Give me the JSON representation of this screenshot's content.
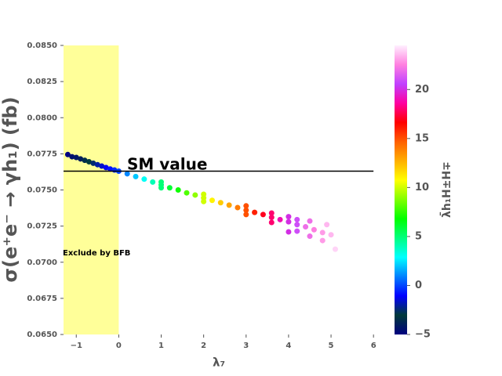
{
  "chart_data": {
    "type": "scatter",
    "x_label": "λ₇",
    "y_label": "σ(e⁺e⁻ → γh₁) (fb)",
    "colorbar_label": "λ̄h₁H±H∓",
    "annotations": [
      "SM value",
      "Exclude by BFB"
    ],
    "sm_line": {
      "y": 0.0763,
      "x": [
        -1.3,
        6
      ],
      "color": "#000000"
    },
    "exclude_region": {
      "x": [
        -1.3,
        0
      ],
      "color": "#ffff99"
    },
    "xlim": [
      -1.3,
      6.2
    ],
    "ylim": [
      0.065,
      0.085
    ],
    "clim": [
      -5,
      24.5
    ],
    "xticks": [
      {
        "value": -1,
        "label": "−1"
      },
      0,
      1,
      2,
      3,
      4,
      5,
      6
    ],
    "yticks": [
      {
        "value": 0.065,
        "label": "0.0650"
      },
      {
        "value": 0.0675,
        "label": "0.0675"
      },
      {
        "value": 0.07,
        "label": "0.0700"
      },
      {
        "value": 0.0725,
        "label": "0.0725"
      },
      {
        "value": 0.075,
        "label": "0.0750"
      },
      {
        "value": 0.0775,
        "label": "0.0775"
      },
      {
        "value": 0.08,
        "label": "0.0800"
      },
      {
        "value": 0.0825,
        "label": "0.0825"
      },
      {
        "value": 0.085,
        "label": "0.0850"
      }
    ],
    "cticks": [
      {
        "value": -5,
        "label": "−5"
      },
      0,
      5,
      10,
      15,
      20
    ],
    "colormap": [
      "#000080",
      "#003a3a",
      "#0000ff",
      "#0080ff",
      "#00ffff",
      "#00ff80",
      "#00ff00",
      "#80ff00",
      "#ffff00",
      "#ffb000",
      "#ff6000",
      "#ff0000",
      "#ff00a0",
      "#c040ff",
      "#ff80e0",
      "#fff0ff"
    ],
    "series": [
      {
        "x": [
          -1.2,
          -1.1,
          -1.0,
          -0.9,
          -0.8,
          -0.7,
          -0.6,
          -0.5,
          -0.4,
          -0.3,
          -0.2,
          -0.1,
          0.0,
          0.2,
          0.4,
          0.6,
          0.8,
          1.0,
          1.2,
          1.4,
          1.6,
          1.8,
          2.0,
          2.2,
          2.4,
          2.6,
          2.8,
          3.0,
          3.2,
          3.4,
          3.6,
          3.8,
          4.0,
          4.2,
          4.4,
          4.6,
          4.8,
          5.0,
          1.0,
          1.0,
          2.0,
          2.0,
          3.0,
          3.0,
          3.6,
          3.6,
          4.0,
          4.0,
          4.2,
          4.2,
          4.5,
          4.5,
          4.9,
          5.1,
          4.8
        ],
        "values": [
          0.07745,
          0.0773,
          0.07725,
          0.07715,
          0.07705,
          0.07695,
          0.07685,
          0.07675,
          0.07665,
          0.07655,
          0.07645,
          0.07638,
          0.0763,
          0.07612,
          0.07593,
          0.07575,
          0.07555,
          0.07535,
          0.07515,
          0.075,
          0.0748,
          0.07465,
          0.07445,
          0.07428,
          0.07412,
          0.07395,
          0.07378,
          0.0736,
          0.07345,
          0.0733,
          0.0731,
          0.07295,
          0.0728,
          0.0726,
          0.07245,
          0.07225,
          0.07205,
          0.0719,
          0.07555,
          0.07515,
          0.0747,
          0.0742,
          0.0739,
          0.0733,
          0.0734,
          0.07275,
          0.07315,
          0.0721,
          0.07295,
          0.07215,
          0.07285,
          0.0718,
          0.0726,
          0.0709,
          0.0715
        ],
        "c": [
          -5,
          -4.5,
          -4.3,
          -4,
          -3.5,
          -3,
          -2.5,
          -2,
          -1.6,
          -1.2,
          -0.8,
          -0.4,
          0,
          1,
          2,
          3,
          4,
          5,
          6,
          7,
          8,
          9,
          10,
          11,
          12,
          13,
          14,
          15,
          16,
          17,
          18,
          19,
          20,
          21,
          22,
          22.5,
          23,
          23.5,
          5,
          5,
          10,
          10,
          15,
          15,
          18,
          18,
          20,
          20,
          21,
          21,
          22,
          22,
          23.5,
          24,
          23
        ]
      }
    ]
  }
}
